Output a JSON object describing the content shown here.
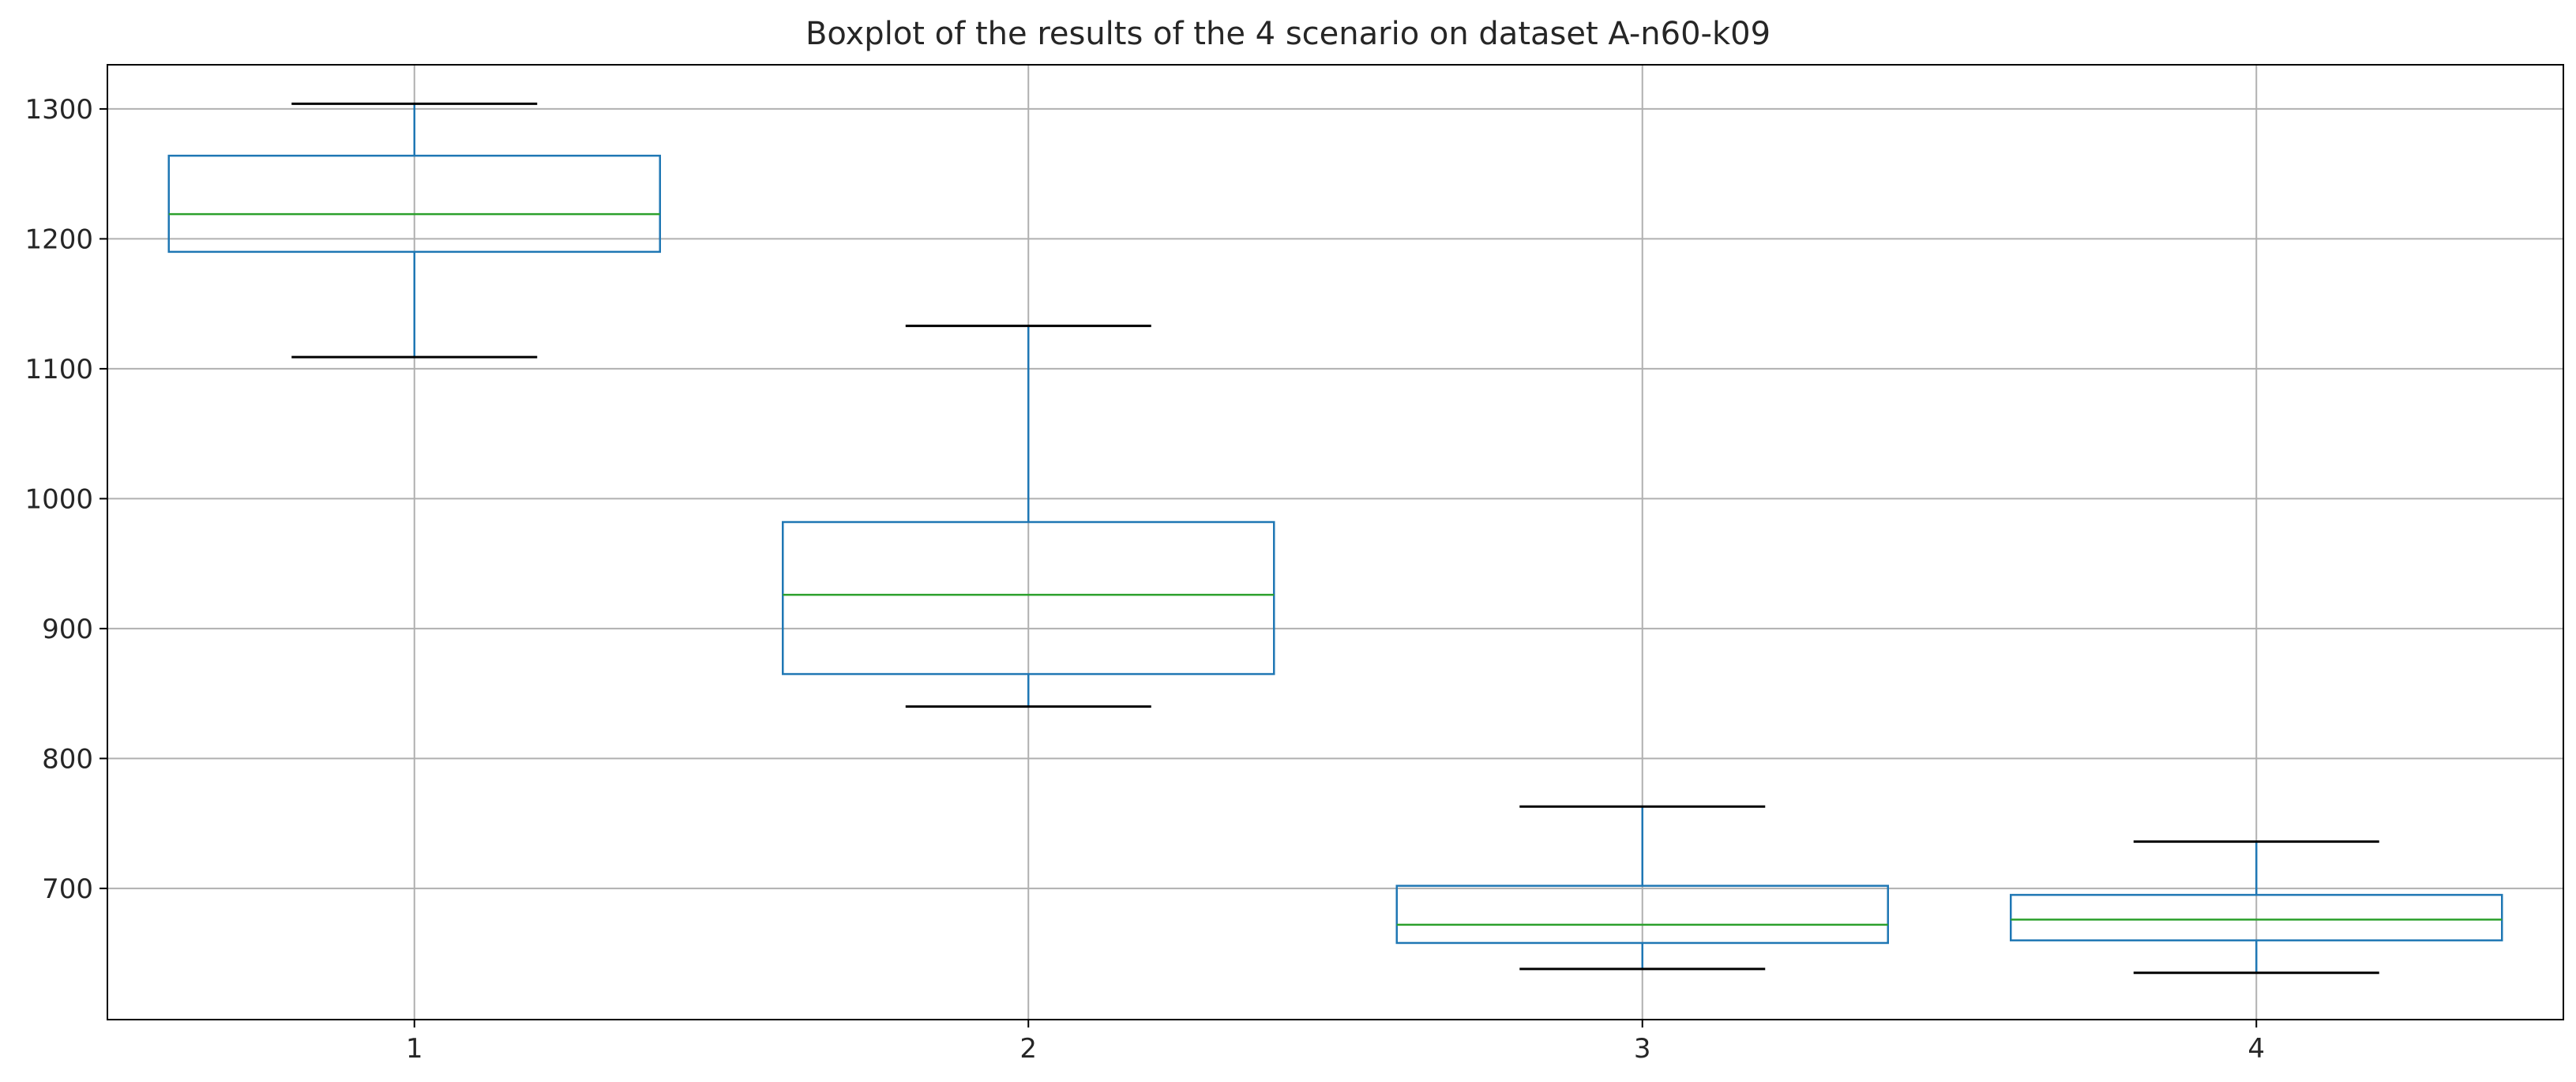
{
  "chart_data": {
    "type": "boxplot",
    "title": "Boxplot of the results of the 4 scenario on dataset A-n60-k09",
    "xlabel": "",
    "ylabel": "",
    "categories": [
      "1",
      "2",
      "3",
      "4"
    ],
    "boxes": [
      {
        "category": "1",
        "whisker_low": 1109,
        "q1": 1190,
        "median": 1219,
        "q3": 1264,
        "whisker_high": 1304
      },
      {
        "category": "2",
        "whisker_low": 840,
        "q1": 865,
        "median": 926,
        "q3": 982,
        "whisker_high": 1133
      },
      {
        "category": "3",
        "whisker_low": 638,
        "q1": 658,
        "median": 672,
        "q3": 702,
        "whisker_high": 763
      },
      {
        "category": "4",
        "whisker_low": 635,
        "q1": 660,
        "median": 676,
        "q3": 695,
        "whisker_high": 736
      }
    ],
    "y_ticks": [
      700,
      800,
      900,
      1000,
      1100,
      1200,
      1300
    ],
    "ylim": [
      599,
      1334
    ],
    "xlim": [
      0.5,
      4.5
    ],
    "grid": true,
    "colors": {
      "box": "#1f77b4",
      "median": "#2ca02c",
      "whisker_cap": "#000000",
      "grid": "#b0b0b0",
      "axes": "#000000"
    }
  }
}
